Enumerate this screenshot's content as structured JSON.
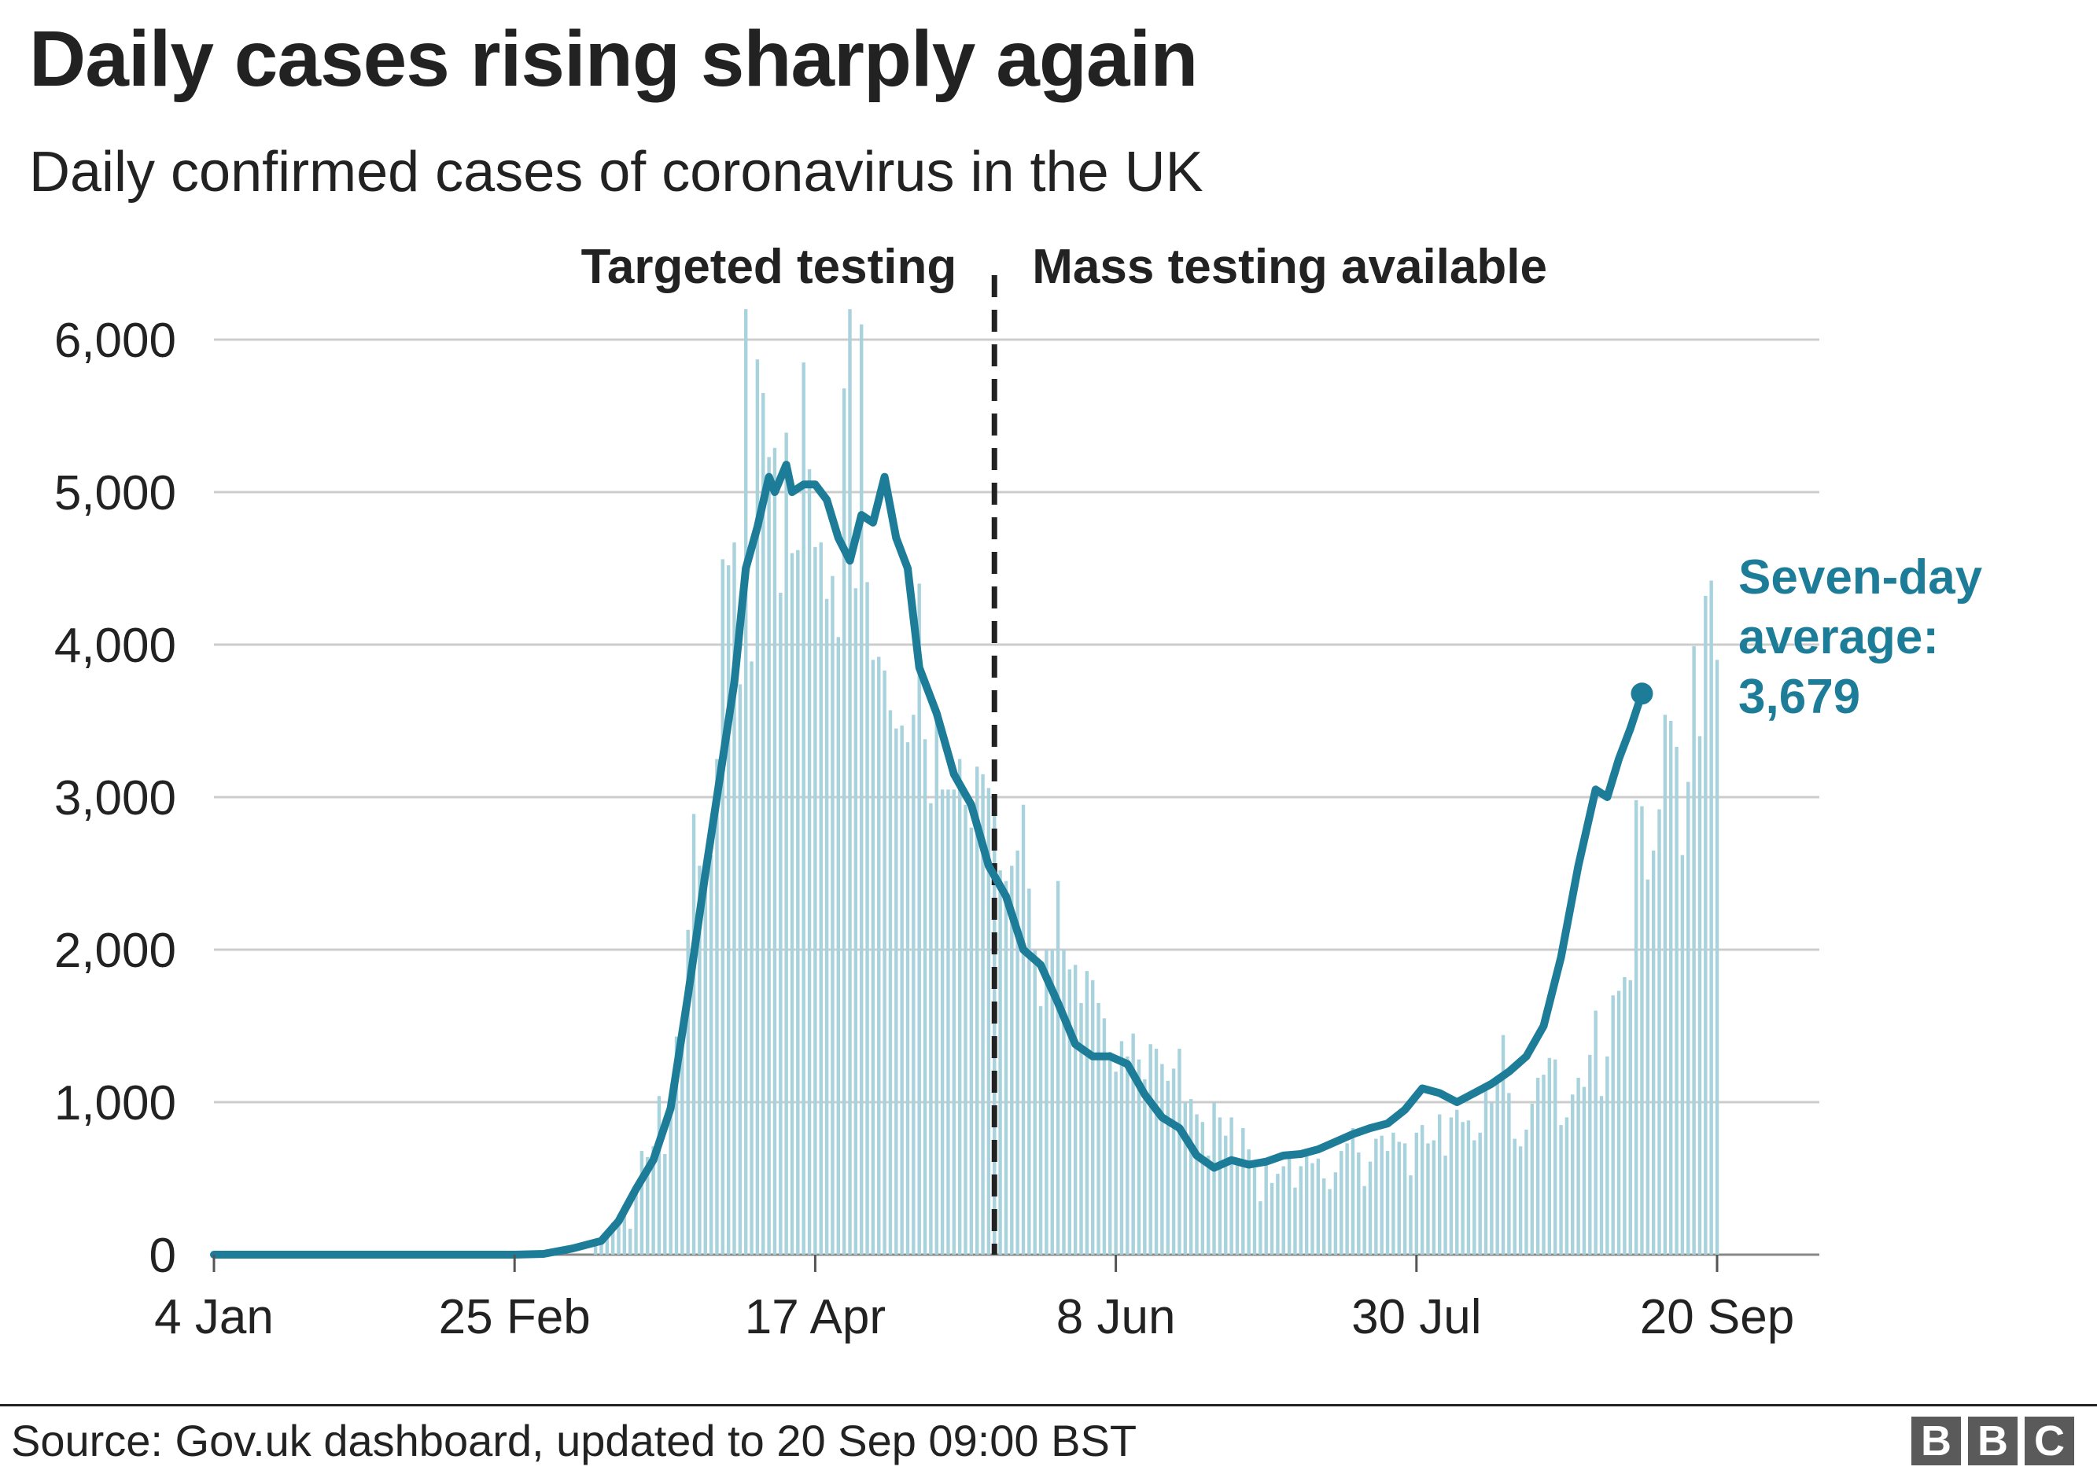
{
  "title": "Daily cases rising sharply again",
  "subtitle": "Daily confirmed cases of coronavirus in the UK",
  "source": "Source: Gov.uk dashboard, updated to 20 Sep 09:00 BST",
  "logo": {
    "letters": [
      "B",
      "B",
      "C"
    ],
    "color": "#5a5a5a"
  },
  "colors": {
    "bars": "#a8d2dc",
    "line": "#1d7d99",
    "grid": "#cccccc",
    "text": "#222222",
    "marker_line": "#222222"
  },
  "chart_data": {
    "type": "bar",
    "x_start": "2020-01-04",
    "x_end": "2020-09-20",
    "ylim": [
      0,
      6000
    ],
    "yticks": [
      0,
      1000,
      2000,
      3000,
      4000,
      5000,
      6000
    ],
    "ytick_labels": [
      "0",
      "1,000",
      "2,000",
      "3,000",
      "4,000",
      "5,000",
      "6,000"
    ],
    "xticks": [
      {
        "label": "4 Jan",
        "date": "2020-01-04"
      },
      {
        "label": "25 Feb",
        "date": "2020-02-25"
      },
      {
        "label": "17 Apr",
        "date": "2020-04-17"
      },
      {
        "label": "8 Jun",
        "date": "2020-06-08"
      },
      {
        "label": "30 Jul",
        "date": "2020-07-30"
      },
      {
        "label": "20 Sep",
        "date": "2020-09-20"
      }
    ],
    "grid": true,
    "divider": {
      "date": "2020-05-18",
      "left_label": "Targeted testing",
      "right_label": "Mass testing available"
    },
    "series": [
      {
        "name": "Daily confirmed cases",
        "kind": "bars",
        "points": [
          [
            "2020-03-10",
            60
          ],
          [
            "2020-03-11",
            70
          ],
          [
            "2020-03-12",
            120
          ],
          [
            "2020-03-13",
            210
          ],
          [
            "2020-03-14",
            260
          ],
          [
            "2020-03-15",
            280
          ],
          [
            "2020-03-16",
            170
          ],
          [
            "2020-03-17",
            410
          ],
          [
            "2020-03-18",
            680
          ],
          [
            "2020-03-19",
            640
          ],
          [
            "2020-03-20",
            710
          ],
          [
            "2020-03-21",
            1040
          ],
          [
            "2020-03-22",
            660
          ],
          [
            "2020-03-23",
            970
          ],
          [
            "2020-03-24",
            1430
          ],
          [
            "2020-03-25",
            1450
          ],
          [
            "2020-03-26",
            2130
          ],
          [
            "2020-03-27",
            2890
          ],
          [
            "2020-03-28",
            2550
          ],
          [
            "2020-03-29",
            2500
          ],
          [
            "2020-03-30",
            2620
          ],
          [
            "2020-03-31",
            3250
          ],
          [
            "2020-04-01",
            4560
          ],
          [
            "2020-04-02",
            4520
          ],
          [
            "2020-04-03",
            4670
          ],
          [
            "2020-04-04",
            3740
          ],
          [
            "2020-04-05",
            6200
          ],
          [
            "2020-04-06",
            3890
          ],
          [
            "2020-04-07",
            5870
          ],
          [
            "2020-04-08",
            5650
          ],
          [
            "2020-04-09",
            5230
          ],
          [
            "2020-04-10",
            5290
          ],
          [
            "2020-04-11",
            4340
          ],
          [
            "2020-04-12",
            5390
          ],
          [
            "2020-04-13",
            4600
          ],
          [
            "2020-04-14",
            4620
          ],
          [
            "2020-04-15",
            5850
          ],
          [
            "2020-04-16",
            5150
          ],
          [
            "2020-04-17",
            4640
          ],
          [
            "2020-04-18",
            4670
          ],
          [
            "2020-04-19",
            4300
          ],
          [
            "2020-04-20",
            4450
          ],
          [
            "2020-04-21",
            4050
          ],
          [
            "2020-04-22",
            5680
          ],
          [
            "2020-04-23",
            6200
          ],
          [
            "2020-04-24",
            4370
          ],
          [
            "2020-04-25",
            6100
          ],
          [
            "2020-04-26",
            4410
          ],
          [
            "2020-04-27",
            3900
          ],
          [
            "2020-04-28",
            3920
          ],
          [
            "2020-04-29",
            3830
          ],
          [
            "2020-04-30",
            3570
          ],
          [
            "2020-05-01",
            3450
          ],
          [
            "2020-05-02",
            3470
          ],
          [
            "2020-05-03",
            3360
          ],
          [
            "2020-05-04",
            3540
          ],
          [
            "2020-05-05",
            4400
          ],
          [
            "2020-05-06",
            3380
          ],
          [
            "2020-05-07",
            2960
          ],
          [
            "2020-05-08",
            3550
          ],
          [
            "2020-05-09",
            3050
          ],
          [
            "2020-05-10",
            3050
          ],
          [
            "2020-05-11",
            3050
          ],
          [
            "2020-05-12",
            3250
          ],
          [
            "2020-05-13",
            2950
          ],
          [
            "2020-05-14",
            2800
          ],
          [
            "2020-05-15",
            3200
          ],
          [
            "2020-05-16",
            3150
          ],
          [
            "2020-05-17",
            3060
          ],
          [
            "2020-05-18",
            2950
          ],
          [
            "2020-05-19",
            2520
          ],
          [
            "2020-05-20",
            2450
          ],
          [
            "2020-05-21",
            2550
          ],
          [
            "2020-05-22",
            2650
          ],
          [
            "2020-05-23",
            2950
          ],
          [
            "2020-05-24",
            2400
          ],
          [
            "2020-05-25",
            2000
          ],
          [
            "2020-05-26",
            1630
          ],
          [
            "2020-05-27",
            2000
          ],
          [
            "2020-05-28",
            2000
          ],
          [
            "2020-05-29",
            2450
          ],
          [
            "2020-05-30",
            2000
          ],
          [
            "2020-05-31",
            1870
          ],
          [
            "2020-06-01",
            1900
          ],
          [
            "2020-06-02",
            1650
          ],
          [
            "2020-06-03",
            1860
          ],
          [
            "2020-06-04",
            1800
          ],
          [
            "2020-06-05",
            1650
          ],
          [
            "2020-06-06",
            1550
          ],
          [
            "2020-06-07",
            1330
          ],
          [
            "2020-06-08",
            1200
          ],
          [
            "2020-06-09",
            1400
          ],
          [
            "2020-06-10",
            1300
          ],
          [
            "2020-06-11",
            1450
          ],
          [
            "2020-06-12",
            1280
          ],
          [
            "2020-06-13",
            1150
          ],
          [
            "2020-06-14",
            1380
          ],
          [
            "2020-06-15",
            1350
          ],
          [
            "2020-06-16",
            1250
          ],
          [
            "2020-06-17",
            1140
          ],
          [
            "2020-06-18",
            1220
          ],
          [
            "2020-06-19",
            1350
          ],
          [
            "2020-06-20",
            1000
          ],
          [
            "2020-06-21",
            1020
          ],
          [
            "2020-06-22",
            920
          ],
          [
            "2020-06-23",
            870
          ],
          [
            "2020-06-24",
            650
          ],
          [
            "2020-06-25",
            1000
          ],
          [
            "2020-06-26",
            900
          ],
          [
            "2020-06-27",
            780
          ],
          [
            "2020-06-28",
            900
          ],
          [
            "2020-06-29",
            600
          ],
          [
            "2020-06-30",
            830
          ],
          [
            "2020-07-01",
            690
          ],
          [
            "2020-07-02",
            570
          ],
          [
            "2020-07-03",
            350
          ],
          [
            "2020-07-04",
            620
          ],
          [
            "2020-07-05",
            470
          ],
          [
            "2020-07-06",
            530
          ],
          [
            "2020-07-07",
            580
          ],
          [
            "2020-07-08",
            650
          ],
          [
            "2020-07-09",
            440
          ],
          [
            "2020-07-10",
            580
          ],
          [
            "2020-07-11",
            650
          ],
          [
            "2020-07-12",
            600
          ],
          [
            "2020-07-13",
            630
          ],
          [
            "2020-07-14",
            500
          ],
          [
            "2020-07-15",
            430
          ],
          [
            "2020-07-16",
            540
          ],
          [
            "2020-07-17",
            680
          ],
          [
            "2020-07-18",
            730
          ],
          [
            "2020-07-19",
            830
          ],
          [
            "2020-07-20",
            670
          ],
          [
            "2020-07-21",
            450
          ],
          [
            "2020-07-22",
            610
          ],
          [
            "2020-07-23",
            760
          ],
          [
            "2020-07-24",
            780
          ],
          [
            "2020-07-25",
            680
          ],
          [
            "2020-07-26",
            800
          ],
          [
            "2020-07-27",
            740
          ],
          [
            "2020-07-28",
            730
          ],
          [
            "2020-07-29",
            520
          ],
          [
            "2020-07-30",
            800
          ],
          [
            "2020-07-31",
            850
          ],
          [
            "2020-08-01",
            730
          ],
          [
            "2020-08-02",
            750
          ],
          [
            "2020-08-03",
            920
          ],
          [
            "2020-08-04",
            650
          ],
          [
            "2020-08-05",
            900
          ],
          [
            "2020-08-06",
            950
          ],
          [
            "2020-08-07",
            870
          ],
          [
            "2020-08-08",
            880
          ],
          [
            "2020-08-09",
            750
          ],
          [
            "2020-08-10",
            800
          ],
          [
            "2020-08-11",
            1120
          ],
          [
            "2020-08-12",
            1000
          ],
          [
            "2020-08-13",
            1150
          ],
          [
            "2020-08-14",
            1440
          ],
          [
            "2020-08-15",
            1060
          ],
          [
            "2020-08-16",
            760
          ],
          [
            "2020-08-17",
            710
          ],
          [
            "2020-08-18",
            820
          ],
          [
            "2020-08-19",
            990
          ],
          [
            "2020-08-20",
            1160
          ],
          [
            "2020-08-21",
            1180
          ],
          [
            "2020-08-22",
            1290
          ],
          [
            "2020-08-23",
            1280
          ],
          [
            "2020-08-24",
            850
          ],
          [
            "2020-08-25",
            900
          ],
          [
            "2020-08-26",
            1050
          ],
          [
            "2020-08-27",
            1160
          ],
          [
            "2020-08-28",
            1100
          ],
          [
            "2020-08-29",
            1310
          ],
          [
            "2020-08-30",
            1600
          ],
          [
            "2020-08-31",
            1040
          ],
          [
            "2020-09-01",
            1300
          ],
          [
            "2020-09-02",
            1700
          ],
          [
            "2020-09-03",
            1730
          ],
          [
            "2020-09-04",
            1820
          ],
          [
            "2020-09-05",
            1800
          ],
          [
            "2020-09-06",
            2980
          ],
          [
            "2020-09-07",
            2940
          ],
          [
            "2020-09-08",
            2460
          ],
          [
            "2020-09-09",
            2650
          ],
          [
            "2020-09-10",
            2920
          ],
          [
            "2020-09-11",
            3540
          ],
          [
            "2020-09-12",
            3500
          ],
          [
            "2020-09-13",
            3330
          ],
          [
            "2020-09-14",
            2620
          ],
          [
            "2020-09-15",
            3100
          ],
          [
            "2020-09-16",
            3990
          ],
          [
            "2020-09-17",
            3400
          ],
          [
            "2020-09-18",
            4320
          ],
          [
            "2020-09-19",
            4420
          ],
          [
            "2020-09-20",
            3900
          ]
        ]
      },
      {
        "name": "Seven-day average",
        "kind": "line",
        "points": [
          [
            "2020-01-04",
            0
          ],
          [
            "2020-02-25",
            0
          ],
          [
            "2020-03-01",
            5
          ],
          [
            "2020-03-06",
            40
          ],
          [
            "2020-03-11",
            90
          ],
          [
            "2020-03-14",
            220
          ],
          [
            "2020-03-17",
            430
          ],
          [
            "2020-03-20",
            620
          ],
          [
            "2020-03-23",
            960
          ],
          [
            "2020-03-26",
            1700
          ],
          [
            "2020-03-29",
            2500
          ],
          [
            "2020-04-01",
            3250
          ],
          [
            "2020-04-03",
            3750
          ],
          [
            "2020-04-05",
            4500
          ],
          [
            "2020-04-07",
            4770
          ],
          [
            "2020-04-09",
            5100
          ],
          [
            "2020-04-10",
            5000
          ],
          [
            "2020-04-12",
            5180
          ],
          [
            "2020-04-13",
            5000
          ],
          [
            "2020-04-15",
            5050
          ],
          [
            "2020-04-17",
            5050
          ],
          [
            "2020-04-19",
            4950
          ],
          [
            "2020-04-21",
            4700
          ],
          [
            "2020-04-23",
            4550
          ],
          [
            "2020-04-25",
            4850
          ],
          [
            "2020-04-27",
            4800
          ],
          [
            "2020-04-29",
            5100
          ],
          [
            "2020-05-01",
            4700
          ],
          [
            "2020-05-03",
            4500
          ],
          [
            "2020-05-05",
            3850
          ],
          [
            "2020-05-08",
            3550
          ],
          [
            "2020-05-11",
            3150
          ],
          [
            "2020-05-14",
            2950
          ],
          [
            "2020-05-17",
            2550
          ],
          [
            "2020-05-20",
            2350
          ],
          [
            "2020-05-23",
            2000
          ],
          [
            "2020-05-26",
            1900
          ],
          [
            "2020-05-29",
            1650
          ],
          [
            "2020-06-01",
            1380
          ],
          [
            "2020-06-04",
            1300
          ],
          [
            "2020-06-07",
            1300
          ],
          [
            "2020-06-10",
            1250
          ],
          [
            "2020-06-13",
            1050
          ],
          [
            "2020-06-16",
            900
          ],
          [
            "2020-06-19",
            830
          ],
          [
            "2020-06-22",
            650
          ],
          [
            "2020-06-25",
            570
          ],
          [
            "2020-06-28",
            620
          ],
          [
            "2020-07-01",
            590
          ],
          [
            "2020-07-04",
            610
          ],
          [
            "2020-07-07",
            650
          ],
          [
            "2020-07-10",
            660
          ],
          [
            "2020-07-13",
            690
          ],
          [
            "2020-07-16",
            740
          ],
          [
            "2020-07-19",
            790
          ],
          [
            "2020-07-22",
            830
          ],
          [
            "2020-07-25",
            860
          ],
          [
            "2020-07-28",
            950
          ],
          [
            "2020-07-31",
            1090
          ],
          [
            "2020-08-03",
            1060
          ],
          [
            "2020-08-06",
            1000
          ],
          [
            "2020-08-09",
            1060
          ],
          [
            "2020-08-12",
            1120
          ],
          [
            "2020-08-15",
            1200
          ],
          [
            "2020-08-18",
            1300
          ],
          [
            "2020-08-21",
            1500
          ],
          [
            "2020-08-24",
            1950
          ],
          [
            "2020-08-27",
            2550
          ],
          [
            "2020-08-30",
            3050
          ],
          [
            "2020-09-01",
            3000
          ],
          [
            "2020-09-03",
            3250
          ],
          [
            "2020-09-05",
            3450
          ],
          [
            "2020-09-07",
            3679
          ]
        ]
      }
    ],
    "annotation": {
      "line1": "Seven-day",
      "line2": "average:",
      "value": "3,679"
    }
  }
}
